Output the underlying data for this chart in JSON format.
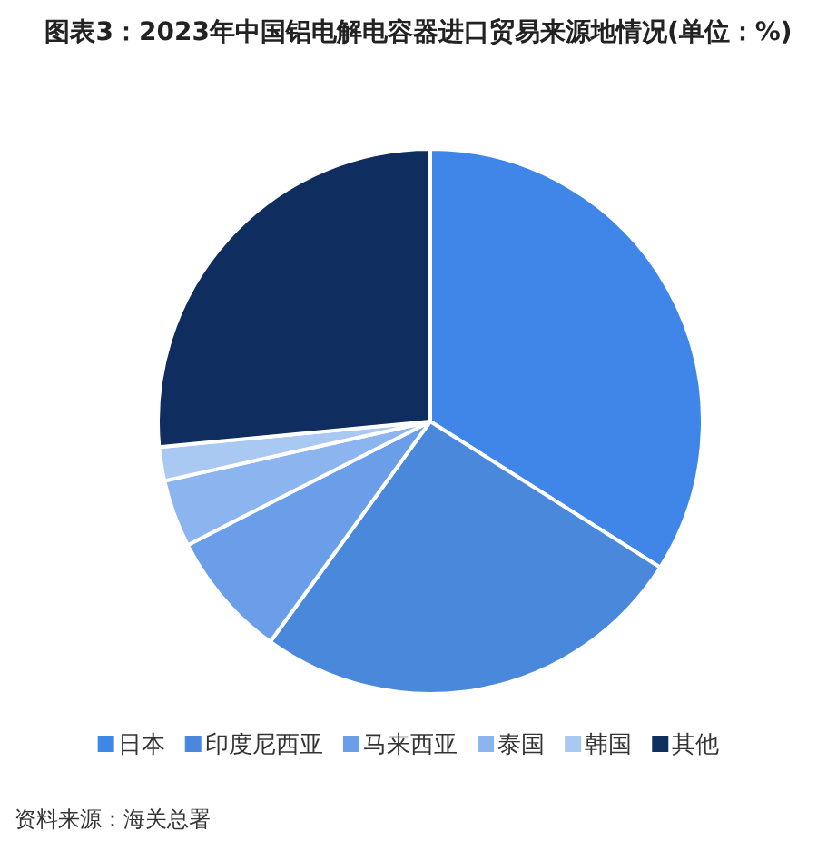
{
  "chart_data": {
    "type": "pie",
    "title": "图表3：2023年中国铝电解电容器进口贸易来源地情况(单位：%)",
    "categories": [
      "日本",
      "印度尼西亚",
      "马来西亚",
      "泰国",
      "韩国",
      "其他"
    ],
    "values": [
      34,
      26,
      7.5,
      4,
      2,
      26.5
    ],
    "colors": [
      "#3f86e8",
      "#4a88dc",
      "#6a9ee8",
      "#8cb4ee",
      "#a9c8f2",
      "#0f2d5e"
    ],
    "legend": "bottom",
    "annotations": [
      "资料来源：海关总署"
    ]
  }
}
